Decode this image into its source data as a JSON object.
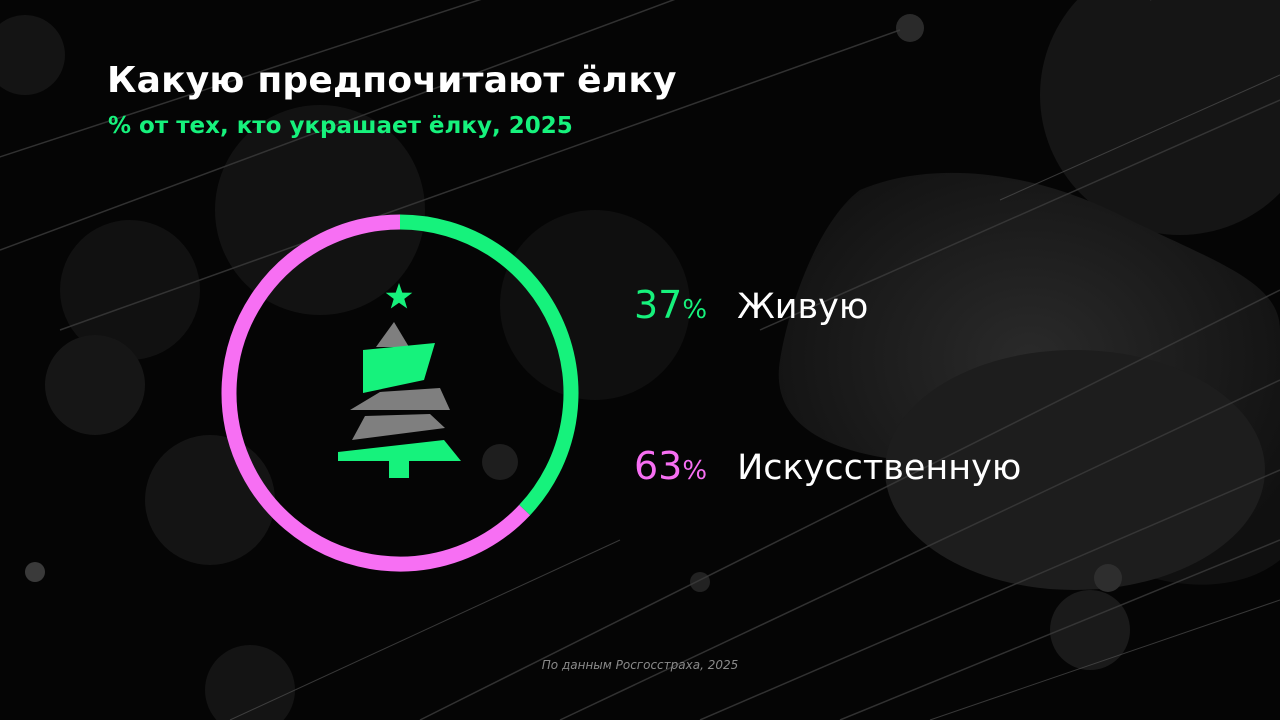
{
  "colors": {
    "live": "#16f27c",
    "artificial": "#f76ff3",
    "tree_gray": "#7f7f7f",
    "background": "#000000"
  },
  "icons": [
    "christmas-tree-icon",
    "star-icon"
  ],
  "chart_data": {
    "type": "pie",
    "variant": "donut",
    "title": "Какую предпочитают ёлку",
    "subtitle": "% от тех, кто украшает ёлку, 2025",
    "unit": "%",
    "slices": [
      {
        "label": "Живую",
        "value": 37,
        "value_text": "37",
        "unit_text": "%",
        "color": "#16f27c"
      },
      {
        "label": "Искусственную",
        "value": 63,
        "value_text": "63",
        "unit_text": "%",
        "color": "#f76ff3"
      }
    ],
    "legend_placement": "right"
  },
  "footer": {
    "source": "По данным Росгосстраха, 2025"
  }
}
